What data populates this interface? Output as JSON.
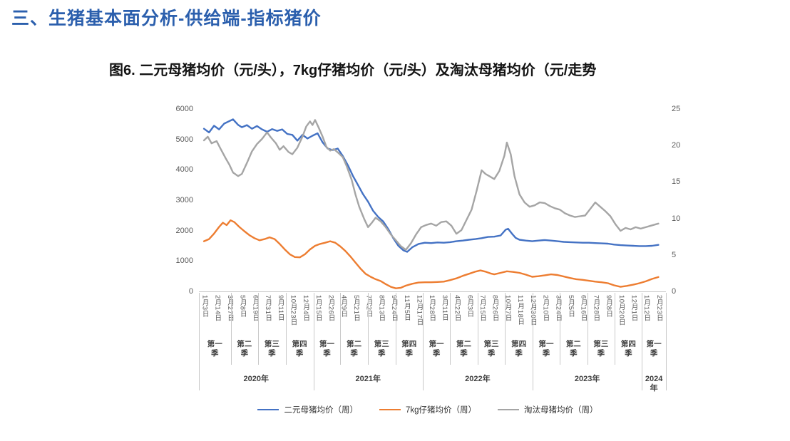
{
  "page": {
    "heading": "三、生猪基本面分析-供给端-指标猪价",
    "figure_title": "图6. 二元母猪均价（元/头），7kg仔猪均价（元/头）及淘汰母猪均价（元/走势"
  },
  "colors": {
    "heading_text": "#2b5fad",
    "axis_text": "#595959",
    "axis_line": "#c9c9c9",
    "series_blue": "#4472C4",
    "series_orange": "#ED7D31",
    "series_gray": "#A5A5A5"
  },
  "chart_data": {
    "type": "line",
    "title": "图6. 二元母猪均价（元/头），7kg仔猪均价（元/头）及淘汰母猪均价（元/走势",
    "grid": false,
    "legend_position": "bottom",
    "left_axis": {
      "min": 0,
      "max": 6000,
      "step": 1000,
      "ticks": [
        0,
        1000,
        2000,
        3000,
        4000,
        5000,
        6000
      ]
    },
    "right_axis": {
      "min": 0,
      "max": 25,
      "step": 5,
      "ticks": [
        0,
        5,
        10,
        15,
        20,
        25
      ]
    },
    "x_tick_labels": [
      "1月3日",
      "2月14日",
      "3月27日",
      "5月8日",
      "6月19日",
      "7月31日",
      "9月11日",
      "10月23日",
      "12月4日",
      "1月15日",
      "2月26日",
      "4月9日",
      "5月21日",
      "7月2日",
      "8月13日",
      "9月24日",
      "11月5日",
      "12月17日",
      "1月28日",
      "3月11日",
      "4月22日",
      "6月3日",
      "7月15日",
      "8月26日",
      "10月7日",
      "11月18日",
      "12月30日",
      "2月10日",
      "3月24日",
      "5月5日",
      "6月16日",
      "7月28日",
      "9月8日",
      "10月20日",
      "12月1日",
      "1月12日",
      "2月23日"
    ],
    "quarters": [
      {
        "label": "第一季",
        "start": -0.4,
        "end": 2.12
      },
      {
        "label": "第二季",
        "start": 2.12,
        "end": 4.29
      },
      {
        "label": "第三季",
        "start": 4.29,
        "end": 6.48
      },
      {
        "label": "第四季",
        "start": 6.48,
        "end": 8.67
      },
      {
        "label": "第一季",
        "start": 8.67,
        "end": 10.81
      },
      {
        "label": "第二季",
        "start": 10.81,
        "end": 12.98
      },
      {
        "label": "第三季",
        "start": 12.98,
        "end": 15.17
      },
      {
        "label": "第四季",
        "start": 15.17,
        "end": 17.33
      },
      {
        "label": "第一季",
        "start": 17.33,
        "end": 19.5
      },
      {
        "label": "第二季",
        "start": 19.5,
        "end": 21.67
      },
      {
        "label": "第三季",
        "start": 21.67,
        "end": 23.86
      },
      {
        "label": "第四季",
        "start": 23.86,
        "end": 26.03
      },
      {
        "label": "第一季",
        "start": 26.03,
        "end": 28.19
      },
      {
        "label": "第二季",
        "start": 28.19,
        "end": 30.36
      },
      {
        "label": "第三季",
        "start": 30.36,
        "end": 32.55
      },
      {
        "label": "第四季",
        "start": 32.55,
        "end": 34.7
      },
      {
        "label": "第一季",
        "start": 34.7,
        "end": 36.6
      }
    ],
    "years": [
      {
        "label": "2020年",
        "start": -0.4,
        "end": 8.67
      },
      {
        "label": "2021年",
        "start": 8.67,
        "end": 17.33
      },
      {
        "label": "2022年",
        "start": 17.33,
        "end": 26.03
      },
      {
        "label": "2023年",
        "start": 26.03,
        "end": 34.7
      },
      {
        "label": "2024年",
        "start": 34.7,
        "end": 36.6
      }
    ],
    "series": [
      {
        "name": "二元母猪均价（周）",
        "axis": "left",
        "color": "#4472C4",
        "points": [
          [
            0,
            5350
          ],
          [
            0.4,
            5230
          ],
          [
            0.8,
            5450
          ],
          [
            1.2,
            5330
          ],
          [
            1.6,
            5520
          ],
          [
            2,
            5600
          ],
          [
            2.3,
            5660
          ],
          [
            2.7,
            5480
          ],
          [
            3,
            5400
          ],
          [
            3.4,
            5470
          ],
          [
            3.8,
            5350
          ],
          [
            4.2,
            5440
          ],
          [
            4.6,
            5330
          ],
          [
            5,
            5250
          ],
          [
            5.4,
            5340
          ],
          [
            5.8,
            5280
          ],
          [
            6.2,
            5330
          ],
          [
            6.6,
            5180
          ],
          [
            7,
            5150
          ],
          [
            7.4,
            4960
          ],
          [
            7.8,
            5150
          ],
          [
            8.2,
            5030
          ],
          [
            8.6,
            5120
          ],
          [
            9,
            5200
          ],
          [
            9.4,
            4900
          ],
          [
            9.8,
            4700
          ],
          [
            10.2,
            4650
          ],
          [
            10.6,
            4700
          ],
          [
            11,
            4450
          ],
          [
            11.4,
            4150
          ],
          [
            11.8,
            3800
          ],
          [
            12.2,
            3500
          ],
          [
            12.6,
            3200
          ],
          [
            13,
            2950
          ],
          [
            13.4,
            2650
          ],
          [
            13.8,
            2450
          ],
          [
            14.2,
            2300
          ],
          [
            14.6,
            2050
          ],
          [
            15,
            1750
          ],
          [
            15.4,
            1500
          ],
          [
            15.8,
            1350
          ],
          [
            16.1,
            1300
          ],
          [
            16.5,
            1450
          ],
          [
            17,
            1560
          ],
          [
            17.5,
            1600
          ],
          [
            18,
            1590
          ],
          [
            18.5,
            1610
          ],
          [
            19,
            1600
          ],
          [
            19.5,
            1620
          ],
          [
            20,
            1650
          ],
          [
            20.5,
            1670
          ],
          [
            21,
            1700
          ],
          [
            21.5,
            1720
          ],
          [
            22,
            1750
          ],
          [
            22.5,
            1790
          ],
          [
            23,
            1800
          ],
          [
            23.5,
            1840
          ],
          [
            23.9,
            2030
          ],
          [
            24.1,
            2060
          ],
          [
            24.4,
            1900
          ],
          [
            24.7,
            1760
          ],
          [
            25,
            1700
          ],
          [
            25.5,
            1670
          ],
          [
            26,
            1650
          ],
          [
            26.5,
            1670
          ],
          [
            27,
            1690
          ],
          [
            27.5,
            1670
          ],
          [
            28,
            1650
          ],
          [
            28.5,
            1630
          ],
          [
            29,
            1620
          ],
          [
            29.5,
            1610
          ],
          [
            30,
            1600
          ],
          [
            30.5,
            1600
          ],
          [
            31,
            1590
          ],
          [
            31.5,
            1580
          ],
          [
            32,
            1570
          ],
          [
            32.5,
            1540
          ],
          [
            33,
            1520
          ],
          [
            33.5,
            1510
          ],
          [
            34,
            1500
          ],
          [
            34.5,
            1490
          ],
          [
            35,
            1490
          ],
          [
            35.5,
            1500
          ],
          [
            36,
            1530
          ]
        ]
      },
      {
        "name": "7kg仔猪均价（周）",
        "axis": "left",
        "color": "#ED7D31",
        "points": [
          [
            0,
            1650
          ],
          [
            0.4,
            1720
          ],
          [
            0.8,
            1900
          ],
          [
            1.2,
            2120
          ],
          [
            1.5,
            2260
          ],
          [
            1.8,
            2180
          ],
          [
            2.1,
            2340
          ],
          [
            2.4,
            2280
          ],
          [
            2.8,
            2120
          ],
          [
            3.2,
            1980
          ],
          [
            3.6,
            1850
          ],
          [
            4,
            1750
          ],
          [
            4.4,
            1680
          ],
          [
            4.8,
            1720
          ],
          [
            5.2,
            1780
          ],
          [
            5.6,
            1720
          ],
          [
            6,
            1560
          ],
          [
            6.4,
            1380
          ],
          [
            6.8,
            1220
          ],
          [
            7.2,
            1130
          ],
          [
            7.6,
            1120
          ],
          [
            8,
            1220
          ],
          [
            8.4,
            1380
          ],
          [
            8.8,
            1500
          ],
          [
            9.2,
            1560
          ],
          [
            9.6,
            1600
          ],
          [
            10,
            1650
          ],
          [
            10.4,
            1600
          ],
          [
            10.8,
            1480
          ],
          [
            11.2,
            1330
          ],
          [
            11.6,
            1150
          ],
          [
            12,
            950
          ],
          [
            12.4,
            750
          ],
          [
            12.8,
            580
          ],
          [
            13.2,
            480
          ],
          [
            13.6,
            400
          ],
          [
            14,
            340
          ],
          [
            14.4,
            240
          ],
          [
            14.8,
            150
          ],
          [
            15.2,
            100
          ],
          [
            15.6,
            120
          ],
          [
            16,
            190
          ],
          [
            16.5,
            250
          ],
          [
            17,
            290
          ],
          [
            17.5,
            300
          ],
          [
            18,
            300
          ],
          [
            18.5,
            310
          ],
          [
            19,
            320
          ],
          [
            19.5,
            370
          ],
          [
            20,
            430
          ],
          [
            20.5,
            510
          ],
          [
            21,
            580
          ],
          [
            21.5,
            650
          ],
          [
            21.9,
            690
          ],
          [
            22.3,
            650
          ],
          [
            22.7,
            590
          ],
          [
            23,
            560
          ],
          [
            23.5,
            610
          ],
          [
            24,
            660
          ],
          [
            24.5,
            640
          ],
          [
            25,
            610
          ],
          [
            25.5,
            550
          ],
          [
            26,
            480
          ],
          [
            26.5,
            500
          ],
          [
            27,
            530
          ],
          [
            27.5,
            560
          ],
          [
            28,
            540
          ],
          [
            28.5,
            490
          ],
          [
            29,
            440
          ],
          [
            29.5,
            400
          ],
          [
            30,
            380
          ],
          [
            30.5,
            350
          ],
          [
            31,
            320
          ],
          [
            31.5,
            300
          ],
          [
            32,
            270
          ],
          [
            32.5,
            200
          ],
          [
            33,
            150
          ],
          [
            33.5,
            180
          ],
          [
            34,
            220
          ],
          [
            34.5,
            270
          ],
          [
            35,
            330
          ],
          [
            35.5,
            410
          ],
          [
            36,
            470
          ]
        ]
      },
      {
        "name": "淘汰母猪均价（周）",
        "axis": "right",
        "color": "#A5A5A5",
        "points": [
          [
            0,
            20.7
          ],
          [
            0.3,
            21.2
          ],
          [
            0.6,
            20.3
          ],
          [
            1,
            20.6
          ],
          [
            1.3,
            19.6
          ],
          [
            1.7,
            18.3
          ],
          [
            2,
            17.4
          ],
          [
            2.3,
            16.3
          ],
          [
            2.7,
            15.8
          ],
          [
            3,
            16.1
          ],
          [
            3.4,
            17.6
          ],
          [
            3.8,
            19.2
          ],
          [
            4.2,
            20.2
          ],
          [
            4.6,
            20.9
          ],
          [
            5,
            21.8
          ],
          [
            5.3,
            21.1
          ],
          [
            5.7,
            20.3
          ],
          [
            6,
            19.4
          ],
          [
            6.3,
            19.9
          ],
          [
            6.7,
            19.1
          ],
          [
            7,
            18.8
          ],
          [
            7.4,
            19.7
          ],
          [
            7.8,
            21.2
          ],
          [
            8.1,
            22.6
          ],
          [
            8.4,
            23.3
          ],
          [
            8.6,
            22.8
          ],
          [
            8.8,
            23.5
          ],
          [
            9.1,
            22.4
          ],
          [
            9.4,
            21.2
          ],
          [
            9.7,
            19.8
          ],
          [
            10,
            19.3
          ],
          [
            10.3,
            19.5
          ],
          [
            10.7,
            18.9
          ],
          [
            11,
            18.4
          ],
          [
            11.3,
            17.2
          ],
          [
            11.7,
            15.3
          ],
          [
            12,
            13.3
          ],
          [
            12.3,
            11.6
          ],
          [
            12.7,
            9.9
          ],
          [
            13,
            8.8
          ],
          [
            13.3,
            9.4
          ],
          [
            13.6,
            10.1
          ],
          [
            14,
            9.6
          ],
          [
            14.4,
            8.8
          ],
          [
            14.8,
            7.8
          ],
          [
            15.2,
            7
          ],
          [
            15.6,
            6.2
          ],
          [
            16,
            5.7
          ],
          [
            16.4,
            6.6
          ],
          [
            16.8,
            7.8
          ],
          [
            17.2,
            8.8
          ],
          [
            17.6,
            9.1
          ],
          [
            18,
            9.3
          ],
          [
            18.4,
            9
          ],
          [
            18.8,
            9.5
          ],
          [
            19.2,
            9.6
          ],
          [
            19.6,
            9
          ],
          [
            20,
            7.9
          ],
          [
            20.4,
            8.4
          ],
          [
            20.8,
            9.8
          ],
          [
            21.2,
            11.2
          ],
          [
            21.6,
            13.8
          ],
          [
            22,
            16.6
          ],
          [
            22.3,
            16.1
          ],
          [
            22.7,
            15.7
          ],
          [
            23,
            15.4
          ],
          [
            23.4,
            16.5
          ],
          [
            23.8,
            18.6
          ],
          [
            24,
            20.4
          ],
          [
            24.3,
            18.8
          ],
          [
            24.6,
            15.8
          ],
          [
            25,
            13.3
          ],
          [
            25.4,
            12.2
          ],
          [
            25.8,
            11.6
          ],
          [
            26.2,
            11.8
          ],
          [
            26.6,
            12.2
          ],
          [
            27,
            12.1
          ],
          [
            27.4,
            11.7
          ],
          [
            27.8,
            11.4
          ],
          [
            28.2,
            11.2
          ],
          [
            28.6,
            10.7
          ],
          [
            29,
            10.4
          ],
          [
            29.4,
            10.2
          ],
          [
            29.8,
            10.3
          ],
          [
            30.2,
            10.4
          ],
          [
            30.6,
            11.3
          ],
          [
            31,
            12.2
          ],
          [
            31.4,
            11.6
          ],
          [
            31.8,
            11
          ],
          [
            32.2,
            10.3
          ],
          [
            32.6,
            9.2
          ],
          [
            33,
            8.3
          ],
          [
            33.4,
            8.7
          ],
          [
            33.8,
            8.5
          ],
          [
            34.2,
            8.8
          ],
          [
            34.6,
            8.6
          ],
          [
            35,
            8.8
          ],
          [
            35.4,
            9
          ],
          [
            35.8,
            9.2
          ],
          [
            36,
            9.3
          ]
        ]
      }
    ],
    "legend": [
      "二元母猪均价（周）",
      "7kg仔猪均价（周）",
      "淘汰母猪均价（周）"
    ]
  }
}
